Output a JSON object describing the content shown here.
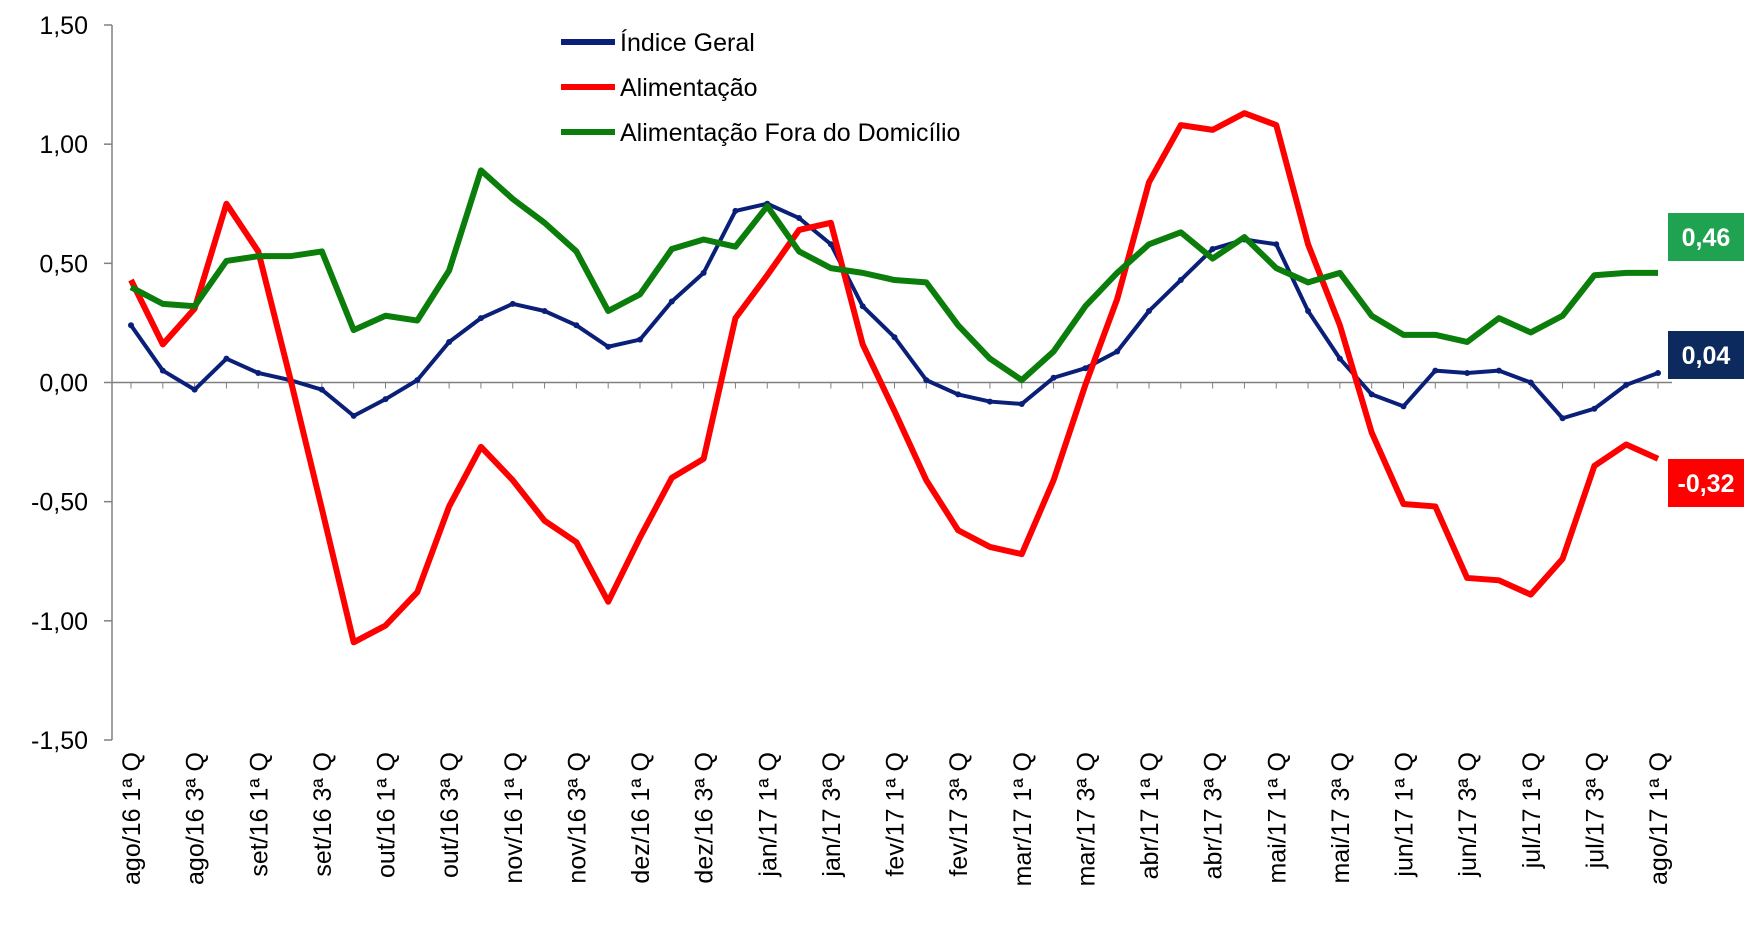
{
  "chart_data": {
    "type": "line",
    "categories": [
      "ago/16 1ª Q",
      null,
      "ago/16 3ª Q",
      null,
      "set/16 1ª Q",
      null,
      "set/16 3ª Q",
      null,
      "out/16 1ª Q",
      null,
      "out/16 3ª Q",
      null,
      "nov/16 1ª Q",
      null,
      "nov/16 3ª Q",
      null,
      "dez/16 1ª Q",
      null,
      "dez/16 3ª Q",
      null,
      "jan/17 1ª Q",
      null,
      "jan/17 3ª Q",
      null,
      "fev/17 1ª Q",
      null,
      "fev/17 3ª Q",
      null,
      "mar/17 1ª Q",
      null,
      "mar/17 3ª Q",
      null,
      "abr/17 1ª Q",
      null,
      "abr/17 3ª Q",
      null,
      "mai/17 1ª Q",
      null,
      "mai/17 3ª Q",
      null,
      "jun/17 1ª Q",
      null,
      "jun/17 3ª Q",
      null,
      "jul/17 1ª Q",
      null,
      "jul/17 3ª Q",
      null,
      "ago/17 1ª Q"
    ],
    "series": [
      {
        "name": "Índice Geral",
        "color": "#0a1f78",
        "end_label": "0,04",
        "end_color": "#0d2a5e",
        "values": [
          0.24,
          0.05,
          -0.03,
          0.1,
          0.04,
          0.01,
          -0.03,
          -0.14,
          -0.07,
          0.01,
          0.17,
          0.27,
          0.33,
          0.3,
          0.24,
          0.15,
          0.18,
          0.34,
          0.46,
          0.72,
          0.75,
          0.69,
          0.58,
          0.32,
          0.19,
          0.01,
          -0.05,
          -0.08,
          -0.09,
          0.02,
          0.06,
          0.13,
          0.3,
          0.43,
          0.56,
          0.6,
          0.58,
          0.3,
          0.1,
          -0.05,
          -0.1,
          0.05,
          0.04,
          0.05,
          0.0,
          -0.15,
          -0.11,
          -0.01,
          0.04
        ]
      },
      {
        "name": "Alimentação",
        "color": "#ff0000",
        "end_label": "-0,32",
        "end_color": "#ff0000",
        "values": [
          0.43,
          0.16,
          0.31,
          0.75,
          0.55,
          0.02,
          -0.53,
          -1.09,
          -1.02,
          -0.88,
          -0.52,
          -0.27,
          -0.41,
          -0.58,
          -0.67,
          -0.92,
          -0.65,
          -0.4,
          -0.32,
          0.27,
          0.45,
          0.64,
          0.67,
          0.16,
          -0.12,
          -0.41,
          -0.62,
          -0.69,
          -0.72,
          -0.41,
          -0.01,
          0.35,
          0.84,
          1.08,
          1.06,
          1.13,
          1.08,
          0.58,
          0.24,
          -0.21,
          -0.51,
          -0.52,
          -0.82,
          -0.83,
          -0.89,
          -0.74,
          -0.35,
          -0.26,
          -0.32
        ]
      },
      {
        "name": "Alimentação Fora do Domicílio",
        "color": "#0a7d0a",
        "end_label": "0,46",
        "end_color": "#1fa351",
        "values": [
          0.4,
          0.33,
          0.32,
          0.51,
          0.53,
          0.53,
          0.55,
          0.22,
          0.28,
          0.26,
          0.47,
          0.89,
          0.77,
          0.67,
          0.55,
          0.3,
          0.37,
          0.56,
          0.6,
          0.57,
          0.74,
          0.55,
          0.48,
          0.46,
          0.43,
          0.42,
          0.24,
          0.1,
          0.01,
          0.13,
          0.32,
          0.46,
          0.58,
          0.63,
          0.52,
          0.61,
          0.48,
          0.42,
          0.46,
          0.28,
          0.2,
          0.2,
          0.17,
          0.27,
          0.21,
          0.28,
          0.45,
          0.46,
          0.46
        ]
      }
    ],
    "ylim": [
      -1.5,
      1.5
    ],
    "yticks": [
      {
        "value": -1.5,
        "label": "-1,50"
      },
      {
        "value": -1.0,
        "label": "-1,00"
      },
      {
        "value": -0.5,
        "label": "-0,50"
      },
      {
        "value": 0,
        "label": "0,00"
      },
      {
        "value": 0.5,
        "label": "0,50"
      },
      {
        "value": 1.0,
        "label": "1,00"
      },
      {
        "value": 1.5,
        "label": "1,50"
      }
    ],
    "grid": false,
    "legend": "top"
  }
}
